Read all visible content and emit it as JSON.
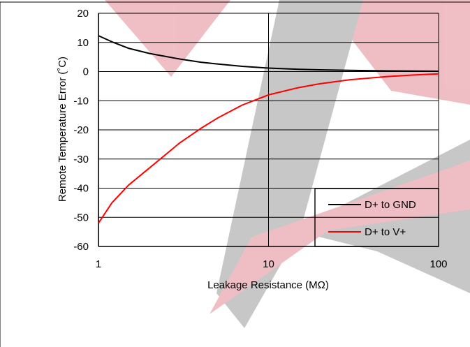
{
  "chart_data": {
    "type": "line",
    "title": "",
    "xlabel": "Leakage Resistance (MΩ)",
    "ylabel": "Remote Temperature Error (˚C)",
    "x_scale": "log",
    "xlim": [
      1,
      100
    ],
    "ylim": [
      -60,
      20
    ],
    "x_ticks": [
      "1",
      "10",
      "100"
    ],
    "y_ticks": [
      "20",
      "10",
      "0",
      "-10",
      "-20",
      "-30",
      "-40",
      "-50",
      "-60"
    ],
    "grid": true,
    "legend_position": "bottom-right",
    "series": [
      {
        "name": "D+ to GND",
        "color": "#000000",
        "x": [
          1,
          1.2,
          1.5,
          2,
          3,
          4,
          5,
          7,
          10,
          15,
          20,
          30,
          50,
          70,
          100
        ],
        "y": [
          12.3,
          10.2,
          8.0,
          6.2,
          4.3,
          3.2,
          2.6,
          1.8,
          1.2,
          0.8,
          0.6,
          0.4,
          0.25,
          0.18,
          0.12
        ]
      },
      {
        "name": "D+ to V+",
        "color": "#ff0000",
        "x": [
          1,
          1.2,
          1.5,
          2,
          3,
          4,
          5,
          7,
          10,
          15,
          20,
          30,
          50,
          70,
          100
        ],
        "y": [
          -52,
          -45,
          -39,
          -33,
          -24.5,
          -19.5,
          -16,
          -11.5,
          -8,
          -5.5,
          -4.2,
          -2.8,
          -1.7,
          -1.2,
          -0.8
        ]
      }
    ]
  }
}
